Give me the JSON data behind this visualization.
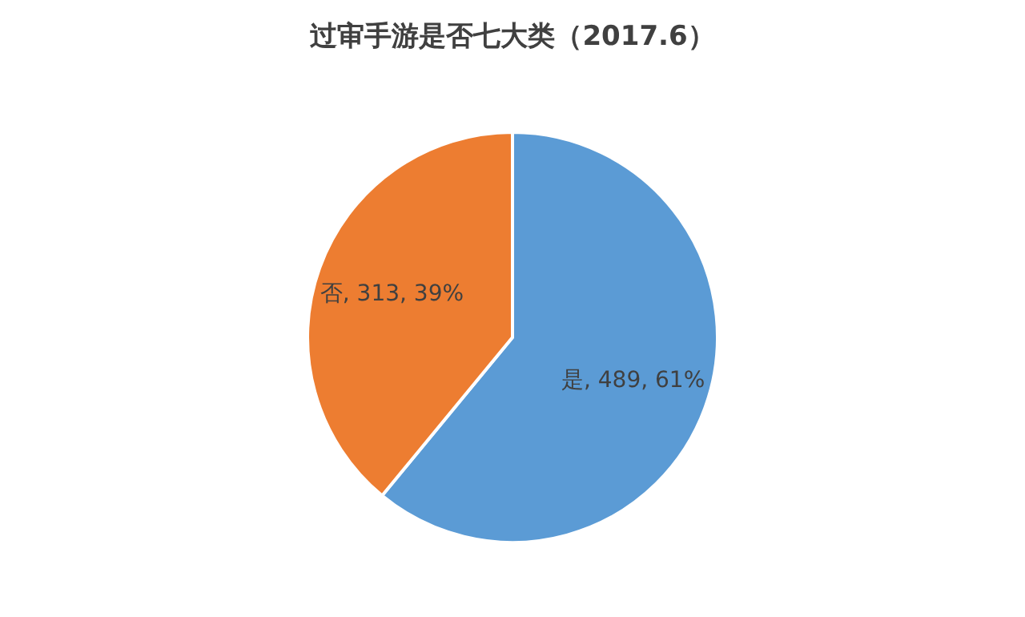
{
  "chart_data": {
    "type": "pie",
    "title": "过审手游是否七大类（2017.6）",
    "categories": [
      "是",
      "否"
    ],
    "values": [
      489,
      313
    ],
    "colors": [
      "#5b9bd5",
      "#ed7d31"
    ],
    "value_labels": [
      "489, 61%",
      "313, 39%"
    ],
    "legend": false
  }
}
